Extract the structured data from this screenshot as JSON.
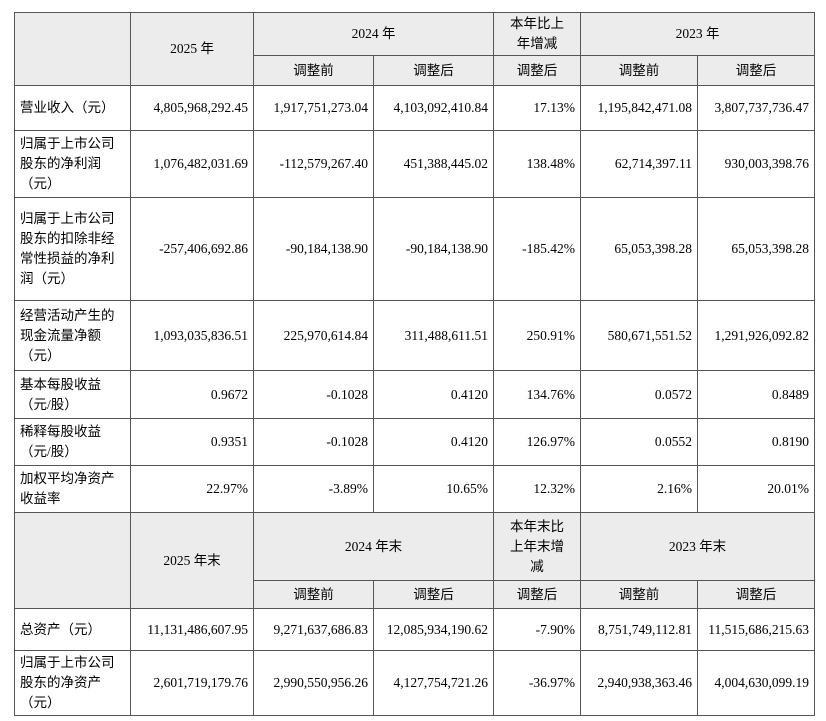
{
  "table1": {
    "header": {
      "y2025": "2025 年",
      "y2024": "2024 年",
      "change": "本年比上年增减",
      "y2023": "2023 年",
      "sub": [
        "调整前",
        "调整后",
        "调整后",
        "调整前",
        "调整后"
      ]
    },
    "rows": [
      [
        "营业收入（元）",
        "4,805,968,292.45",
        "1,917,751,273.04",
        "4,103,092,410.84",
        "17.13%",
        "1,195,842,471.08",
        "3,807,737,736.47"
      ],
      [
        "归属于上市公司股东的净利润（元）",
        "1,076,482,031.69",
        "-112,579,267.40",
        "451,388,445.02",
        "138.48%",
        "62,714,397.11",
        "930,003,398.76"
      ],
      [
        "归属于上市公司股东的扣除非经常性损益的净利润（元）",
        "-257,406,692.86",
        "-90,184,138.90",
        "-90,184,138.90",
        "-185.42%",
        "65,053,398.28",
        "65,053,398.28"
      ],
      [
        "经营活动产生的现金流量净额（元）",
        "1,093,035,836.51",
        "225,970,614.84",
        "311,488,611.51",
        "250.91%",
        "580,671,551.52",
        "1,291,926,092.82"
      ],
      [
        "基本每股收益（元/股）",
        "0.9672",
        "-0.1028",
        "0.4120",
        "134.76%",
        "0.0572",
        "0.8489"
      ],
      [
        "稀释每股收益（元/股）",
        "0.9351",
        "-0.1028",
        "0.4120",
        "126.97%",
        "0.0552",
        "0.8190"
      ],
      [
        "加权平均净资产收益率",
        "22.97%",
        "-3.89%",
        "10.65%",
        "12.32%",
        "2.16%",
        "20.01%"
      ]
    ]
  },
  "table2": {
    "header": {
      "y2025": "2025 年末",
      "y2024": "2024 年末",
      "change": "本年末比上年末增减",
      "y2023": "2023 年末",
      "sub": [
        "调整前",
        "调整后",
        "调整后",
        "调整前",
        "调整后"
      ]
    },
    "rows": [
      [
        "总资产（元）",
        "11,131,486,607.95",
        "9,271,637,686.83",
        "12,085,934,190.62",
        "-7.90%",
        "8,751,749,112.81",
        "11,515,686,215.63"
      ],
      [
        "归属于上市公司股东的净资产（元）",
        "2,601,719,179.76",
        "2,990,550,956.26",
        "4,127,754,721.26",
        "-36.97%",
        "2,940,938,363.46",
        "4,004,630,099.19"
      ]
    ]
  }
}
